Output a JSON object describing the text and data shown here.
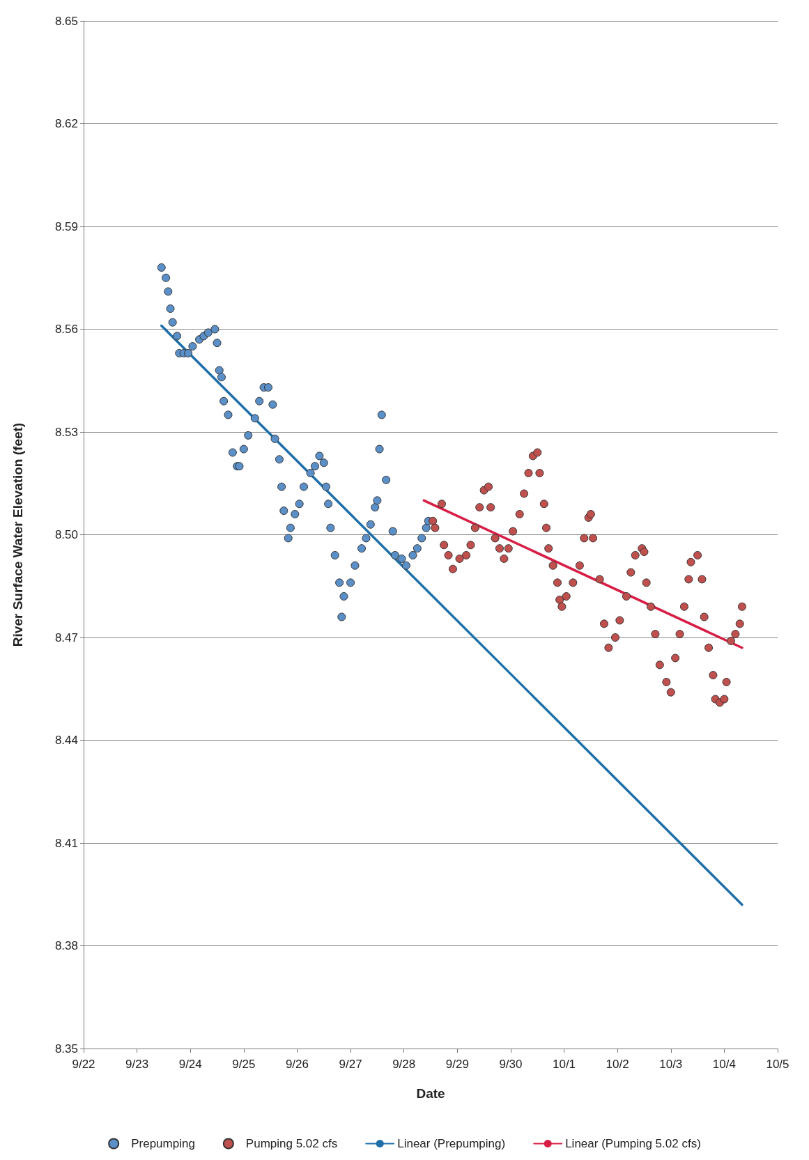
{
  "chart_data": {
    "type": "scatter",
    "xlabel": "Date",
    "ylabel": "River Surface Water Elevation (feet)",
    "xlim": [
      "--09-22",
      "--10-05"
    ],
    "xticks": [
      {
        "value": "--09-22",
        "label": "9/22"
      },
      {
        "value": "--09-23",
        "label": "9/23"
      },
      {
        "value": "--09-24",
        "label": "9/24"
      },
      {
        "value": "--09-25",
        "label": "9/25"
      },
      {
        "value": "--09-26",
        "label": "9/26"
      },
      {
        "value": "--09-27",
        "label": "9/27"
      },
      {
        "value": "--09-28",
        "label": "9/28"
      },
      {
        "value": "--09-29",
        "label": "9/29"
      },
      {
        "value": "--09-30",
        "label": "9/30"
      },
      {
        "value": "--10-01",
        "label": "10/1"
      },
      {
        "value": "--10-02",
        "label": "10/2"
      },
      {
        "value": "--10-03",
        "label": "10/3"
      },
      {
        "value": "--10-04",
        "label": "10/4"
      },
      {
        "value": "--10-05",
        "label": "10/5"
      }
    ],
    "ylim": [
      8.35,
      8.65
    ],
    "yticks": [
      8.35,
      8.38,
      8.41,
      8.44,
      8.47,
      {
        "value": 8.5,
        "label": "8.50"
      },
      8.53,
      8.56,
      8.59,
      8.62,
      8.65
    ],
    "grid": "y",
    "legend": "bottom",
    "marker": "circle",
    "series": [
      {
        "name": "Prepumping",
        "color": "#5b8fc7",
        "x": [
          "--09-23T11:00",
          "--09-23T13:00",
          "--09-23T14:00",
          "--09-23T15:00",
          "--09-23T16:00",
          "--09-23T18:00",
          "--09-23T19:00",
          "--09-23T21:00",
          "--09-23T23:00",
          "--09-24T01:00",
          "--09-24T04:00",
          "--09-24T06:00",
          "--09-24T08:00",
          "--09-24T11:00",
          "--09-24T12:00",
          "--09-24T13:00",
          "--09-24T14:00",
          "--09-24T15:00",
          "--09-24T17:00",
          "--09-24T19:00",
          "--09-24T21:00",
          "--09-24T22:00",
          "--09-25T00:00",
          "--09-25T02:00",
          "--09-25T05:00",
          "--09-25T07:00",
          "--09-25T09:00",
          "--09-25T11:00",
          "--09-25T13:00",
          "--09-25T14:00",
          "--09-25T16:00",
          "--09-25T17:00",
          "--09-25T18:00",
          "--09-25T20:00",
          "--09-25T21:00",
          "--09-25T23:00",
          "--09-26T01:00",
          "--09-26T03:00",
          "--09-26T06:00",
          "--09-26T08:00",
          "--09-26T10:00",
          "--09-26T12:00",
          "--09-26T13:00",
          "--09-26T14:00",
          "--09-26T15:00",
          "--09-26T17:00",
          "--09-26T19:00",
          "--09-26T20:00",
          "--09-26T21:00",
          "--09-27T00:00",
          "--09-27T02:00",
          "--09-27T05:00",
          "--09-27T07:00",
          "--09-27T09:00",
          "--09-27T11:00",
          "--09-27T12:00",
          "--09-27T13:00",
          "--09-27T14:00",
          "--09-27T16:00",
          "--09-27T19:00",
          "--09-27T20:00",
          "--09-27T23:00",
          "--09-28T01:00",
          "--09-28T04:00",
          "--09-28T06:00",
          "--09-28T08:00",
          "--09-28T10:00",
          "--09-28T11:00"
        ],
        "values": [
          8.578,
          8.575,
          8.571,
          8.566,
          8.562,
          8.558,
          8.553,
          8.553,
          8.553,
          8.555,
          8.557,
          8.558,
          8.559,
          8.56,
          8.556,
          8.548,
          8.546,
          8.539,
          8.535,
          8.524,
          8.52,
          8.52,
          8.525,
          8.529,
          8.534,
          8.539,
          8.543,
          8.543,
          8.538,
          8.528,
          8.522,
          8.514,
          8.507,
          8.499,
          8.502,
          8.506,
          8.509,
          8.514,
          8.518,
          8.52,
          8.523,
          8.521,
          8.514,
          8.509,
          8.502,
          8.494,
          8.486,
          8.476,
          8.482,
          8.486,
          8.491,
          8.496,
          8.499,
          8.503,
          8.508,
          8.51,
          8.525,
          8.535,
          8.516,
          8.501,
          8.494,
          8.493,
          8.491,
          8.494,
          8.496,
          8.499,
          8.502,
          8.504
        ]
      },
      {
        "name": "Pumping 5.02 cfs",
        "color": "#c0504d",
        "x": [
          "--09-28T13:00",
          "--09-28T14:00",
          "--09-28T17:00",
          "--09-28T18:00",
          "--09-28T20:00",
          "--09-28T22:00",
          "--09-29T01:00",
          "--09-29T04:00",
          "--09-29T06:00",
          "--09-29T08:00",
          "--09-29T10:00",
          "--09-29T12:00",
          "--09-29T14:00",
          "--09-29T15:00",
          "--09-29T17:00",
          "--09-29T19:00",
          "--09-29T21:00",
          "--09-29T23:00",
          "--09-30T01:00",
          "--09-30T04:00",
          "--09-30T06:00",
          "--09-30T08:00",
          "--09-30T10:00",
          "--09-30T12:00",
          "--09-30T13:00",
          "--09-30T15:00",
          "--09-30T16:00",
          "--09-30T17:00",
          "--09-30T19:00",
          "--09-30T21:00",
          "--09-30T22:00",
          "--09-30T23:00",
          "--10-01T01:00",
          "--10-01T04:00",
          "--10-01T07:00",
          "--10-01T09:00",
          "--10-01T11:00",
          "--10-01T12:00",
          "--10-01T13:00",
          "--10-01T16:00",
          "--10-01T18:00",
          "--10-01T20:00",
          "--10-01T23:00",
          "--10-02T01:00",
          "--10-02T04:00",
          "--10-02T06:00",
          "--10-02T08:00",
          "--10-02T11:00",
          "--10-02T12:00",
          "--10-02T13:00",
          "--10-02T15:00",
          "--10-02T17:00",
          "--10-02T19:00",
          "--10-02T22:00",
          "--10-03T00:00",
          "--10-03T02:00",
          "--10-03T04:00",
          "--10-03T06:00",
          "--10-03T08:00",
          "--10-03T09:00",
          "--10-03T12:00",
          "--10-03T14:00",
          "--10-03T15:00",
          "--10-03T17:00",
          "--10-03T19:00",
          "--10-03T20:00",
          "--10-03T22:00",
          "--10-04T00:00",
          "--10-04T01:00",
          "--10-04T03:00",
          "--10-04T05:00",
          "--10-04T07:00",
          "--10-04T08:00"
        ],
        "values": [
          8.504,
          8.502,
          8.509,
          8.497,
          8.494,
          8.49,
          8.493,
          8.494,
          8.497,
          8.502,
          8.508,
          8.513,
          8.514,
          8.508,
          8.499,
          8.496,
          8.493,
          8.496,
          8.501,
          8.506,
          8.512,
          8.518,
          8.523,
          8.524,
          8.518,
          8.509,
          8.502,
          8.496,
          8.491,
          8.486,
          8.481,
          8.479,
          8.482,
          8.486,
          8.491,
          8.499,
          8.505,
          8.506,
          8.499,
          8.487,
          8.474,
          8.467,
          8.47,
          8.475,
          8.482,
          8.489,
          8.494,
          8.496,
          8.495,
          8.486,
          8.479,
          8.471,
          8.462,
          8.457,
          8.454,
          8.464,
          8.471,
          8.479,
          8.487,
          8.492,
          8.494,
          8.487,
          8.476,
          8.467,
          8.459,
          8.452,
          8.451,
          8.452,
          8.457,
          8.469,
          8.471,
          8.474,
          8.479
        ]
      },
      {
        "name": "Linear (Prepumping)",
        "type": "line",
        "marker": "none",
        "color": "#1f6fa8",
        "x": [
          "--09-23T11:00",
          "--10-04T08:00"
        ],
        "values": [
          8.561,
          8.392
        ]
      },
      {
        "name": "Linear (Pumping 5.02 cfs)",
        "type": "line",
        "marker": "none",
        "color": "#d81e45",
        "x": [
          "--09-28T09:00",
          "--10-04T08:00"
        ],
        "values": [
          8.51,
          8.467
        ]
      }
    ]
  }
}
